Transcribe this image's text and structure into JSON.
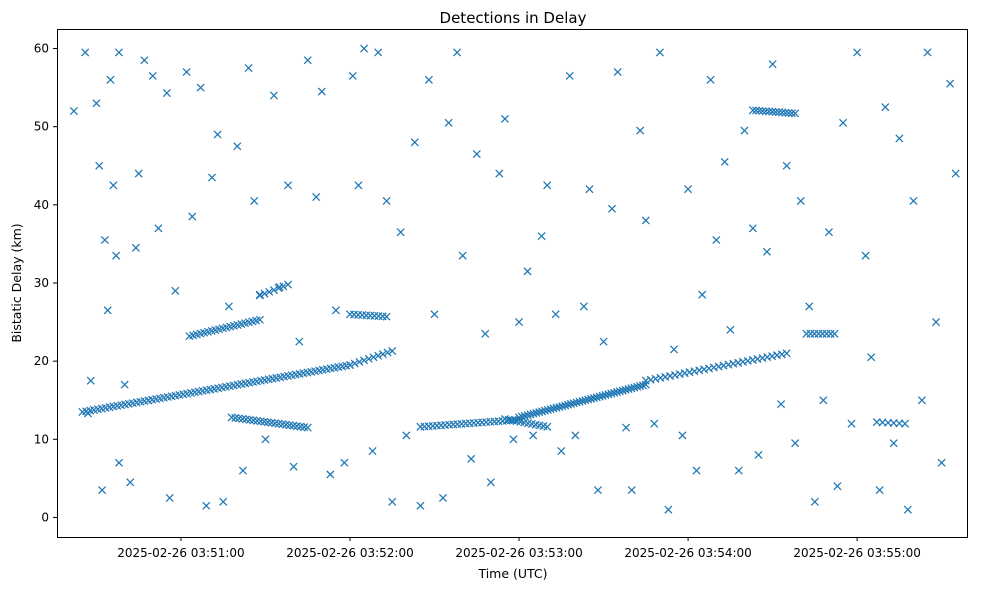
{
  "chart_data": {
    "type": "scatter",
    "title": "Detections in Delay",
    "xlabel": "Time (UTC)",
    "ylabel": "Bistatic Delay (km)",
    "x_unit": "UTC time",
    "xlim": [
      "2025-02-26 03:50:16",
      "2025-02-26 03:55:39"
    ],
    "ylim": [
      -2.5,
      62.5
    ],
    "x_ticks": [
      "2025-02-26 03:51:00",
      "2025-02-26 03:52:00",
      "2025-02-26 03:53:00",
      "2025-02-26 03:54:00",
      "2025-02-26 03:55:00"
    ],
    "y_ticks": [
      0,
      10,
      20,
      30,
      40,
      50,
      60
    ],
    "grid": false,
    "legend": "none",
    "marker": "x",
    "color": "#1f77b4",
    "tracks": [
      {
        "x": [
          "03:50:25",
          "03:52:00"
        ],
        "y": [
          13.5,
          19.5
        ],
        "n": 70
      },
      {
        "x": [
          "03:52:00",
          "03:52:15"
        ],
        "y": [
          19.5,
          21.3
        ],
        "n": 10
      },
      {
        "x": [
          "03:51:03",
          "03:51:28"
        ],
        "y": [
          23.2,
          25.3
        ],
        "n": 20
      },
      {
        "x": [
          "03:51:28",
          "03:51:38"
        ],
        "y": [
          28.4,
          29.8
        ],
        "n": 7
      },
      {
        "x": [
          "03:51:18",
          "03:51:45"
        ],
        "y": [
          12.8,
          11.5
        ],
        "n": 22
      },
      {
        "x": [
          "03:52:25",
          "03:53:00"
        ],
        "y": [
          11.6,
          12.5
        ],
        "n": 25
      },
      {
        "x": [
          "03:53:00",
          "03:53:45"
        ],
        "y": [
          12.8,
          17.0
        ],
        "n": 45
      },
      {
        "x": [
          "03:53:45",
          "03:54:35"
        ],
        "y": [
          17.5,
          21.0
        ],
        "n": 30
      },
      {
        "x": [
          "03:52:55",
          "03:53:10"
        ],
        "y": [
          12.6,
          11.6
        ],
        "n": 12
      },
      {
        "x": [
          "03:52:00",
          "03:52:13"
        ],
        "y": [
          26.0,
          25.7
        ],
        "n": 10
      },
      {
        "x": [
          "03:54:23",
          "03:54:38"
        ],
        "y": [
          52.1,
          51.7
        ],
        "n": 14
      },
      {
        "x": [
          "03:54:42",
          "03:54:52"
        ],
        "y": [
          23.5,
          23.5
        ],
        "n": 8
      },
      {
        "x": [
          "03:55:07",
          "03:55:17"
        ],
        "y": [
          12.2,
          12.0
        ],
        "n": 6
      }
    ],
    "scatter_points": {
      "x": [
        "03:50:22",
        "03:50:26",
        "03:50:27",
        "03:50:28",
        "03:50:30",
        "03:50:31",
        "03:50:32",
        "03:50:33",
        "03:50:34",
        "03:50:35",
        "03:50:36",
        "03:50:37",
        "03:50:38",
        "03:50:38",
        "03:50:40",
        "03:50:42",
        "03:50:44",
        "03:50:45",
        "03:50:47",
        "03:50:50",
        "03:50:52",
        "03:50:55",
        "03:50:56",
        "03:50:58",
        "03:51:02",
        "03:51:04",
        "03:51:07",
        "03:51:09",
        "03:51:11",
        "03:51:13",
        "03:51:15",
        "03:51:17",
        "03:51:20",
        "03:51:22",
        "03:51:24",
        "03:51:26",
        "03:51:28",
        "03:51:30",
        "03:51:33",
        "03:51:35",
        "03:51:38",
        "03:51:40",
        "03:51:42",
        "03:51:45",
        "03:51:48",
        "03:51:50",
        "03:51:53",
        "03:51:55",
        "03:51:58",
        "03:52:01",
        "03:52:03",
        "03:52:05",
        "03:52:08",
        "03:52:10",
        "03:52:13",
        "03:52:15",
        "03:52:18",
        "03:52:20",
        "03:52:23",
        "03:52:25",
        "03:52:28",
        "03:52:30",
        "03:52:33",
        "03:52:35",
        "03:52:38",
        "03:52:40",
        "03:52:43",
        "03:52:45",
        "03:52:48",
        "03:52:50",
        "03:52:53",
        "03:52:55",
        "03:52:58",
        "03:53:00",
        "03:53:03",
        "03:53:05",
        "03:53:08",
        "03:53:10",
        "03:53:13",
        "03:53:15",
        "03:53:18",
        "03:53:20",
        "03:53:23",
        "03:53:25",
        "03:53:28",
        "03:53:30",
        "03:53:33",
        "03:53:35",
        "03:53:38",
        "03:53:40",
        "03:53:43",
        "03:53:45",
        "03:53:48",
        "03:53:50",
        "03:53:53",
        "03:53:55",
        "03:53:58",
        "03:54:00",
        "03:54:03",
        "03:54:05",
        "03:54:08",
        "03:54:10",
        "03:54:13",
        "03:54:15",
        "03:54:18",
        "03:54:20",
        "03:54:23",
        "03:54:25",
        "03:54:28",
        "03:54:30",
        "03:54:33",
        "03:54:35",
        "03:54:38",
        "03:54:40",
        "03:54:43",
        "03:54:45",
        "03:54:48",
        "03:54:50",
        "03:54:53",
        "03:54:55",
        "03:54:58",
        "03:55:00",
        "03:55:03",
        "03:55:05",
        "03:55:08",
        "03:55:10",
        "03:55:13",
        "03:55:15",
        "03:55:18",
        "03:55:20",
        "03:55:23",
        "03:55:25",
        "03:55:28",
        "03:55:30",
        "03:55:33",
        "03:55:35"
      ],
      "y": [
        52.0,
        59.5,
        13.3,
        17.5,
        53.0,
        45.0,
        3.5,
        35.5,
        26.5,
        56.0,
        42.5,
        33.5,
        7.0,
        59.5,
        17.0,
        4.5,
        34.5,
        44.0,
        58.5,
        56.5,
        37.0,
        54.3,
        2.5,
        29.0,
        57.0,
        38.5,
        55.0,
        1.5,
        43.5,
        49.0,
        2.0,
        27.0,
        47.5,
        6.0,
        57.5,
        40.5,
        28.5,
        10.0,
        54.0,
        29.5,
        42.5,
        6.5,
        22.5,
        58.5,
        41.0,
        54.5,
        5.5,
        26.5,
        7.0,
        56.5,
        42.5,
        60.0,
        8.5,
        59.5,
        40.5,
        2.0,
        36.5,
        10.5,
        48.0,
        1.5,
        56.0,
        26.0,
        2.5,
        50.5,
        59.5,
        33.5,
        7.5,
        46.5,
        23.5,
        4.5,
        44.0,
        51.0,
        10.0,
        25.0,
        31.5,
        10.5,
        36.0,
        42.5,
        26.0,
        8.5,
        56.5,
        10.5,
        27.0,
        42.0,
        3.5,
        22.5,
        39.5,
        57.0,
        11.5,
        3.5,
        49.5,
        38.0,
        12.0,
        59.5,
        1.0,
        21.5,
        10.5,
        42.0,
        6.0,
        28.5,
        56.0,
        35.5,
        45.5,
        24.0,
        6.0,
        49.5,
        37.0,
        8.0,
        34.0,
        58.0,
        14.5,
        45.0,
        9.5,
        40.5,
        27.0,
        2.0,
        15.0,
        36.5,
        4.0,
        50.5,
        12.0,
        59.5,
        33.5,
        20.5,
        3.5,
        52.5,
        9.5,
        48.5,
        1.0,
        40.5,
        15.0,
        59.5,
        25.0,
        7.0,
        55.5,
        44.0
      ]
    }
  },
  "styles": {
    "marker_color": "#1f77b4",
    "background": "#ffffff",
    "axis_color": "#000000"
  }
}
